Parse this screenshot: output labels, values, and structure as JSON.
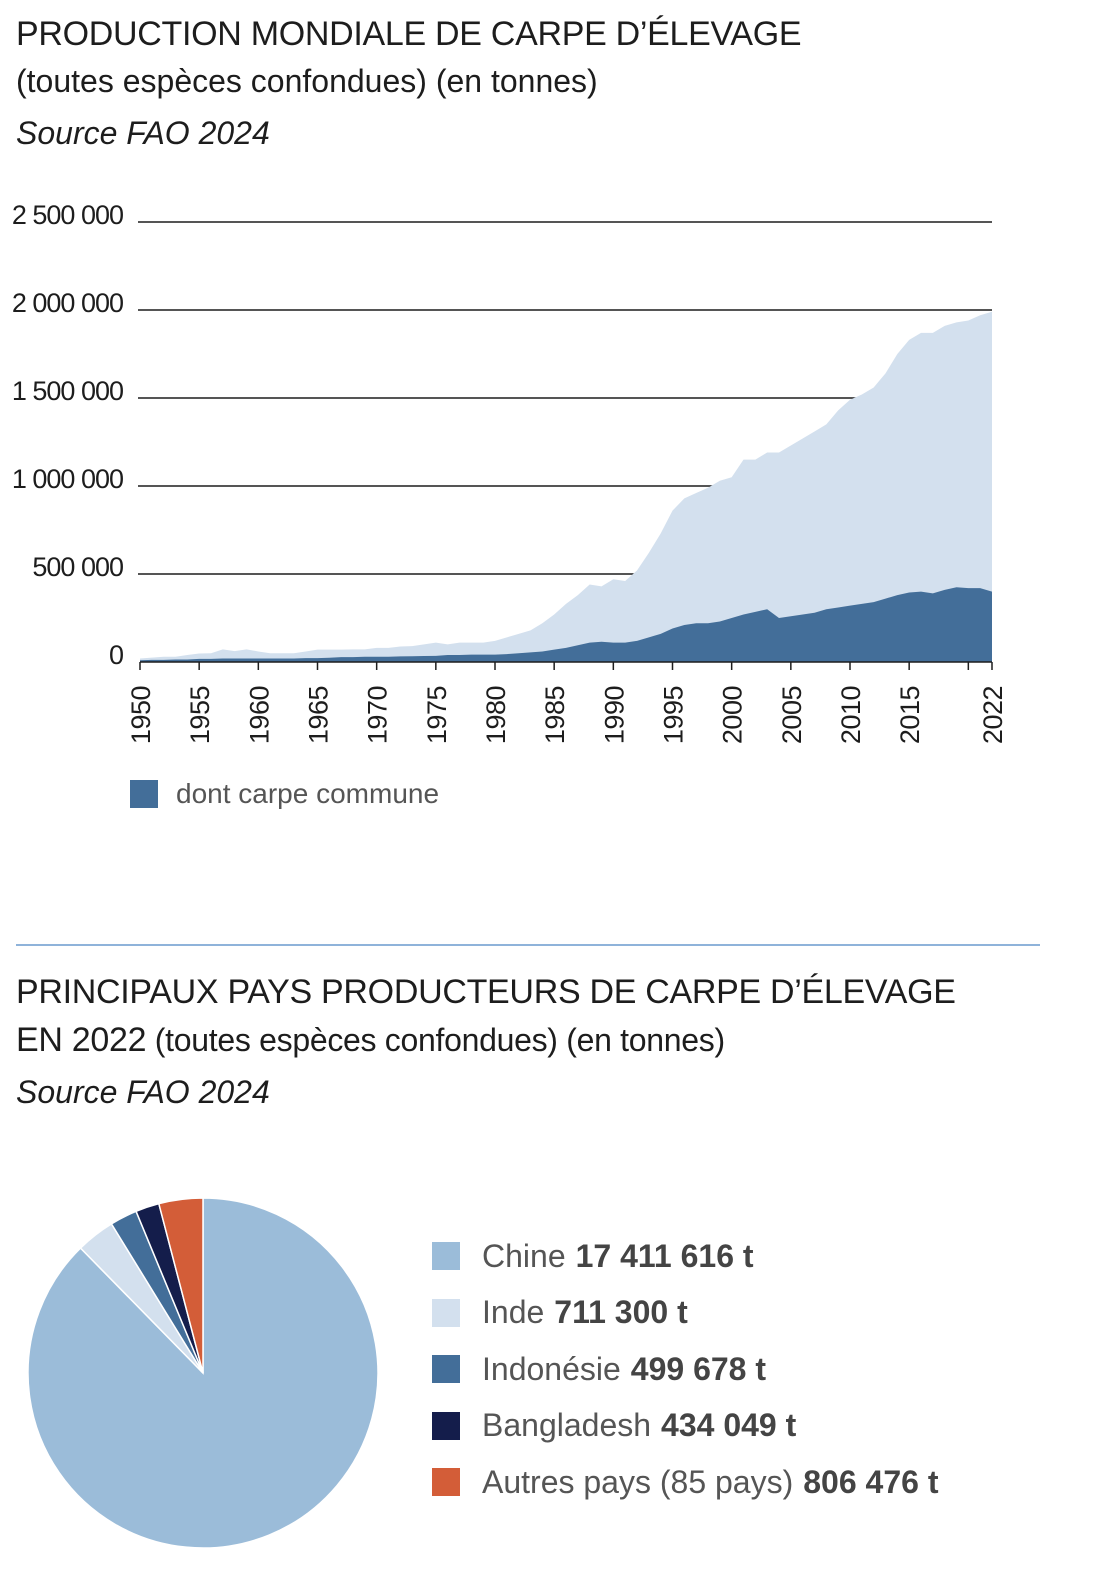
{
  "chart1": {
    "title": "PRODUCTION MONDIALE DE CARPE D’ÉLEVAGE",
    "subtitle": "(toutes espèces confondues) (en tonnes)",
    "source": "Source FAO 2024",
    "legend_label": "dont carpe commune",
    "colors": {
      "total": "#d3e0ee",
      "common": "#436e99",
      "grid": "#1d1d1d"
    }
  },
  "chart2": {
    "title_line1": "PRINCIPAUX PAYS PRODUCTEURS DE CARPE D’ÉLEVAGE",
    "title_line2_year": "EN 2022",
    "title_line2_rest": " (toutes espèces confondues) (en tonnes)",
    "source": "Source FAO 2024"
  },
  "chart_data": [
    {
      "type": "area",
      "x": [
        1950,
        1951,
        1952,
        1953,
        1954,
        1955,
        1956,
        1957,
        1958,
        1959,
        1960,
        1961,
        1962,
        1963,
        1964,
        1965,
        1966,
        1967,
        1968,
        1969,
        1970,
        1971,
        1972,
        1973,
        1974,
        1975,
        1976,
        1977,
        1978,
        1979,
        1980,
        1981,
        1982,
        1983,
        1984,
        1985,
        1986,
        1987,
        1988,
        1989,
        1990,
        1991,
        1992,
        1993,
        1994,
        1995,
        1996,
        1997,
        1998,
        1999,
        2000,
        2001,
        2002,
        2003,
        2004,
        2005,
        2006,
        2007,
        2008,
        2009,
        2010,
        2011,
        2012,
        2013,
        2014,
        2015,
        2016,
        2017,
        2018,
        2019,
        2020,
        2021,
        2022
      ],
      "series": [
        {
          "name": "",
          "values": [
            20000,
            25000,
            30000,
            30000,
            40000,
            48000,
            50000,
            72000,
            62000,
            72000,
            60000,
            50000,
            50000,
            50000,
            60000,
            70000,
            70000,
            70000,
            72000,
            72000,
            80000,
            80000,
            88000,
            90000,
            100000,
            110000,
            100000,
            110000,
            110000,
            110000,
            120000,
            140000,
            160000,
            180000,
            220000,
            270000,
            330000,
            380000,
            440000,
            430000,
            470000,
            460000,
            520000,
            620000,
            730000,
            860000,
            930000,
            960000,
            990000,
            1030000,
            1050000,
            1150000,
            1150000,
            1190000,
            1190000,
            1230000,
            1270000,
            1310000,
            1350000,
            1430000,
            1490000,
            1520000,
            1560000,
            1640000,
            1750000,
            1830000,
            1870000,
            1870000,
            1910000,
            1930000,
            1940000,
            1970000,
            1990000
          ]
        },
        {
          "name": "dont carpe commune",
          "values": [
            10000,
            12000,
            12000,
            14000,
            14000,
            18000,
            18000,
            20000,
            20000,
            20000,
            20000,
            20000,
            20000,
            20000,
            22000,
            22000,
            24000,
            28000,
            28000,
            30000,
            30000,
            30000,
            32000,
            33000,
            34000,
            35000,
            40000,
            40000,
            42000,
            42000,
            42000,
            45000,
            50000,
            55000,
            60000,
            70000,
            80000,
            95000,
            110000,
            115000,
            110000,
            110000,
            120000,
            140000,
            160000,
            190000,
            210000,
            220000,
            220000,
            230000,
            250000,
            270000,
            285000,
            300000,
            250000,
            260000,
            270000,
            280000,
            300000,
            310000,
            320000,
            330000,
            340000,
            360000,
            380000,
            395000,
            400000,
            390000,
            410000,
            425000,
            420000,
            420000,
            400000
          ]
        }
      ],
      "ylim": [
        0,
        2500000
      ],
      "y_ticks": [
        "2 500 000",
        "2 000 000",
        "1 500 000",
        "1 000 000",
        "500 000",
        "0"
      ],
      "x_ticks": [
        "1950",
        "1955",
        "1960",
        "1965",
        "1970",
        "1975",
        "1980",
        "1985",
        "1990",
        "1995",
        "2000",
        "2005",
        "2010",
        "2015",
        "2022"
      ],
      "grid": true
    },
    {
      "type": "pie",
      "unit": "t",
      "slices": [
        {
          "name": "Chine",
          "label": "17 411 616 t",
          "value": 17411616,
          "color": "#9bbcd9"
        },
        {
          "name": "Inde",
          "label": "711 300 t",
          "value": 711300,
          "color": "#d3e0ee"
        },
        {
          "name": "Indonésie",
          "label": "499 678 t",
          "value": 499678,
          "color": "#436e99"
        },
        {
          "name": "Bangladesh",
          "label": "434 049 t",
          "value": 434049,
          "color": "#141d4b"
        },
        {
          "name": "Autres pays (85 pays)",
          "label": "806 476 t",
          "value": 806476,
          "color": "#d35d38"
        }
      ]
    }
  ]
}
